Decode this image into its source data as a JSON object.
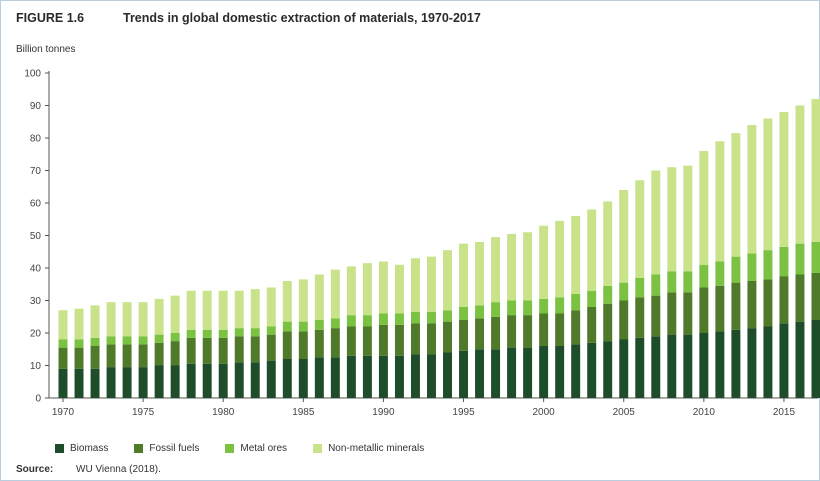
{
  "figure": {
    "number": "FIGURE 1.6",
    "title": "Trends in global domestic extraction of materials, 1970-2017",
    "source_label": "Source:",
    "source_text": "WU Vienna (2018)."
  },
  "chart_data": {
    "type": "bar",
    "stacked": true,
    "title": "Trends in global domestic extraction of materials, 1970-2017",
    "ylabel": "Billion tonnes",
    "xlabel": "",
    "ylim": [
      0,
      100
    ],
    "yticks": [
      0,
      10,
      20,
      30,
      40,
      50,
      60,
      70,
      80,
      90,
      100
    ],
    "xticks": [
      "1970",
      "1975",
      "1980",
      "1985",
      "1990",
      "1995",
      "2000",
      "2005",
      "2010",
      "2015"
    ],
    "grid": false,
    "legend_position": "bottom",
    "categories": [
      "1970",
      "1971",
      "1972",
      "1973",
      "1974",
      "1975",
      "1976",
      "1977",
      "1978",
      "1979",
      "1980",
      "1981",
      "1982",
      "1983",
      "1984",
      "1985",
      "1986",
      "1987",
      "1988",
      "1989",
      "1990",
      "1991",
      "1992",
      "1993",
      "1994",
      "1995",
      "1996",
      "1997",
      "1998",
      "1999",
      "2000",
      "2001",
      "2002",
      "2003",
      "2004",
      "2005",
      "2006",
      "2007",
      "2008",
      "2009",
      "2010",
      "2011",
      "2012",
      "2013",
      "2014",
      "2015",
      "2016",
      "2017"
    ],
    "series": [
      {
        "name": "Biomass",
        "color": "#1e4d2b",
        "values": [
          9,
          9,
          9,
          9.5,
          9.5,
          9.5,
          10,
          10,
          10.5,
          10.5,
          10.5,
          11,
          11,
          11.5,
          12,
          12,
          12.5,
          12.5,
          13,
          13,
          13,
          13,
          13.5,
          13.5,
          14,
          14.5,
          15,
          15,
          15.5,
          15.5,
          16,
          16,
          16.5,
          17,
          17.5,
          18,
          18.5,
          19,
          19.5,
          19.5,
          20,
          20.5,
          21,
          21.5,
          22,
          23,
          23.5,
          24
        ]
      },
      {
        "name": "Fossil fuels",
        "color": "#4f7a2a",
        "values": [
          6.5,
          6.5,
          7,
          7,
          7,
          7,
          7,
          7.5,
          8,
          8,
          8,
          8,
          8,
          8,
          8.5,
          8.5,
          8.5,
          9,
          9,
          9,
          9.5,
          9.5,
          9.5,
          9.5,
          9.5,
          9.5,
          9.5,
          10,
          10,
          10,
          10,
          10,
          10.5,
          11,
          11.5,
          12,
          12.5,
          12.5,
          13,
          13,
          14,
          14,
          14.5,
          14.5,
          14.5,
          14.5,
          14.5,
          14.5
        ]
      },
      {
        "name": "Metal ores",
        "color": "#7cc242",
        "values": [
          2.5,
          2.5,
          2.5,
          2.5,
          2.5,
          2.5,
          2.5,
          2.5,
          2.5,
          2.5,
          2.5,
          2.5,
          2.5,
          2.5,
          3,
          3,
          3,
          3,
          3.5,
          3.5,
          3.5,
          3.5,
          3.5,
          3.5,
          3.5,
          4,
          4,
          4.5,
          4.5,
          4.5,
          4.5,
          5,
          5,
          5,
          5.5,
          5.5,
          6,
          6.5,
          6.5,
          6.5,
          7,
          7.5,
          8,
          8.5,
          9,
          9,
          9.5,
          9.5
        ]
      },
      {
        "name": "Non-metallic minerals",
        "color": "#c9e38a",
        "values": [
          9,
          9.5,
          10,
          10.5,
          10.5,
          10.5,
          11,
          11.5,
          12,
          12,
          12,
          11.5,
          12,
          12,
          12.5,
          13,
          14,
          15,
          15,
          16,
          16,
          15,
          16.5,
          17,
          18.5,
          19.5,
          19.5,
          20,
          20.5,
          21,
          22.5,
          23.5,
          24,
          25,
          26,
          28.5,
          30,
          32,
          32,
          32.5,
          35,
          37,
          38,
          39.5,
          40.5,
          41.5,
          42.5,
          44
        ]
      }
    ]
  }
}
